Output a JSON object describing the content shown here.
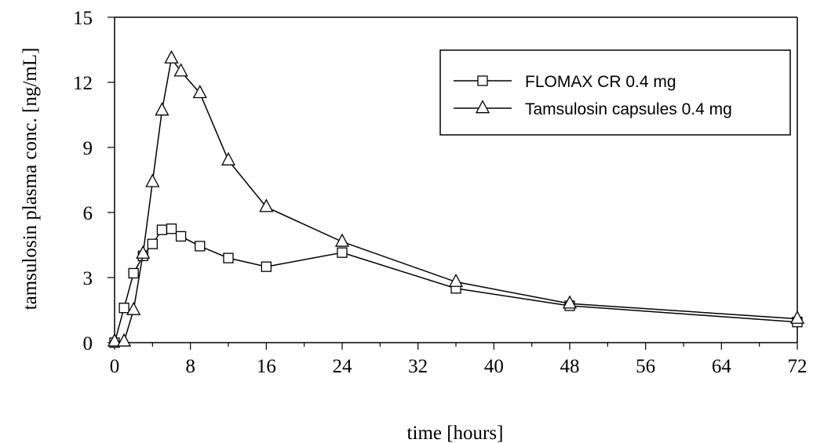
{
  "chart_data": {
    "type": "line",
    "xlabel": "time [hours]",
    "ylabel": "tamsulosin plasma conc. [ng/mL]",
    "xlim": [
      0,
      72
    ],
    "ylim": [
      0,
      15
    ],
    "xticks": [
      0,
      8,
      16,
      24,
      32,
      40,
      48,
      56,
      64,
      72
    ],
    "yticks": [
      0,
      3,
      6,
      9,
      12,
      15
    ],
    "x_minor_step": 4,
    "grid": false,
    "legend_position": "top-right",
    "series": [
      {
        "name": "FLOMAX CR 0.4 mg",
        "marker": "square",
        "x": [
          0,
          1,
          2,
          3,
          4,
          5,
          6,
          7,
          9,
          12,
          16,
          24,
          36,
          48,
          72
        ],
        "y": [
          0.0,
          1.6,
          3.2,
          4.0,
          4.55,
          5.2,
          5.25,
          4.9,
          4.45,
          3.9,
          3.5,
          4.15,
          2.5,
          1.7,
          0.95
        ]
      },
      {
        "name": "Tamsulosin capsules 0.4 mg",
        "marker": "triangle",
        "x": [
          0,
          1,
          2,
          3,
          4,
          5,
          6,
          7,
          9,
          12,
          16,
          24,
          36,
          48,
          72
        ],
        "y": [
          0.05,
          0.05,
          1.5,
          4.1,
          7.4,
          10.7,
          13.1,
          12.5,
          11.5,
          8.4,
          6.25,
          4.65,
          2.8,
          1.8,
          1.1
        ]
      }
    ]
  }
}
